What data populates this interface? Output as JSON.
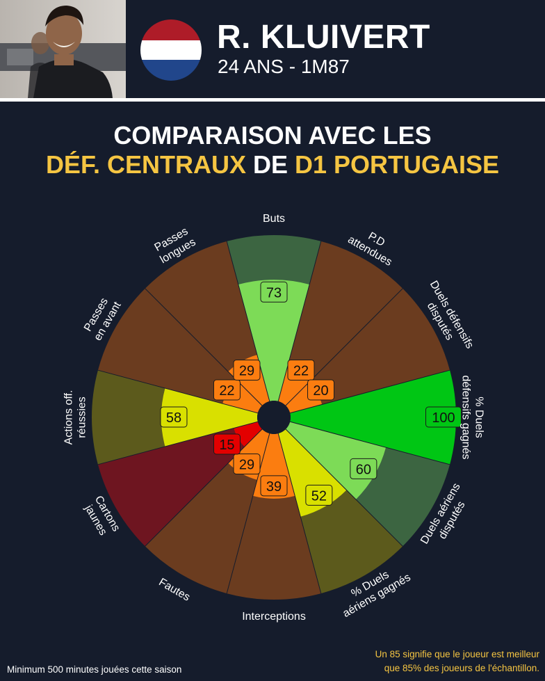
{
  "player": {
    "name": "R. KLUIVERT",
    "info": "24 ANS - 1M87",
    "flag_colors": [
      "#ae1c28",
      "#ffffff",
      "#21468b"
    ]
  },
  "title": {
    "line1": "COMPARAISON AVEC LES",
    "line2_part1": "DÉF. CENTRAUX",
    "line2_part2": "DE",
    "line2_part3": "D1 PORTUGAISE"
  },
  "colors": {
    "background": "#151c2c",
    "accent": "#f5c542"
  },
  "chart_data": {
    "type": "radar-bar",
    "rlim": [
      0,
      100
    ],
    "categories": [
      {
        "label": "Buts",
        "value": 73,
        "color": "#7ddb57",
        "bg": "#3c6541"
      },
      {
        "label": "P.D attendues",
        "value": 22,
        "color": "#fb7d10",
        "bg": "#6b3c1f"
      },
      {
        "label": "Duels défensifs disputés",
        "value": 20,
        "color": "#fb7d10",
        "bg": "#6b3c1f"
      },
      {
        "label": "% Duels défensifs gagnés",
        "value": 100,
        "color": "#00c614",
        "bg": "#155a18"
      },
      {
        "label": "Duels aériens disputés",
        "value": 60,
        "color": "#7ddb57",
        "bg": "#3c6541"
      },
      {
        "label": "% Duels aériens gagnés",
        "value": 52,
        "color": "#d9e000",
        "bg": "#5c5a1c"
      },
      {
        "label": "Interceptions",
        "value": 39,
        "color": "#fb7d10",
        "bg": "#6b3c1f"
      },
      {
        "label": "Fautes",
        "value": 29,
        "color": "#fb7d10",
        "bg": "#6b3c1f"
      },
      {
        "label": "Cartons jaunes",
        "value": 15,
        "color": "#e30000",
        "bg": "#6e1520"
      },
      {
        "label": "Actions off. réussies",
        "value": 58,
        "color": "#d9e000",
        "bg": "#5c5a1c"
      },
      {
        "label": "Passes en avant",
        "value": 22,
        "color": "#fb7d10",
        "bg": "#6b3c1f"
      },
      {
        "label": "Passes longues",
        "value": 29,
        "color": "#fb7d10",
        "bg": "#6b3c1f"
      }
    ]
  },
  "footer": {
    "left": "Minimum 500 minutes jouées cette saison",
    "right_line1": "Un 85 signifie que le joueur est meilleur",
    "right_line2": "que 85% des joueurs de l'échantillon."
  }
}
